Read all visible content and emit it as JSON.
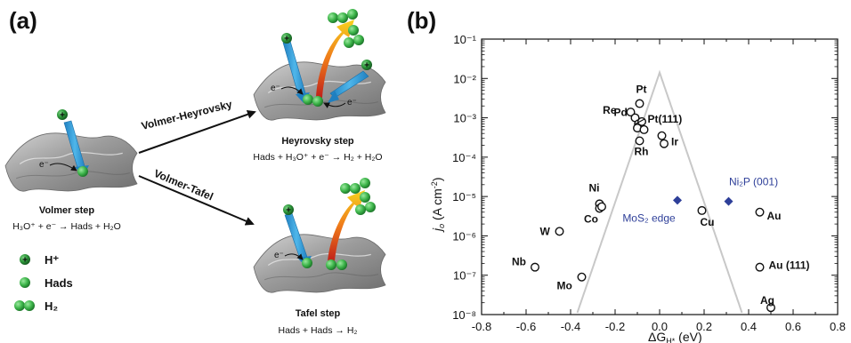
{
  "panel_a": {
    "label": "(a)",
    "volmer": {
      "title": "Volmer step",
      "equation": "H₃O⁺ + e⁻ → Hads + H₂O"
    },
    "heyrovsky": {
      "title": "Heyrovsky step",
      "equation": "Hads + H₃O⁺ + e⁻ → H₂ + H₂O"
    },
    "tafel": {
      "title": "Tafel step",
      "equation": "Hads + Hads → H₂"
    },
    "path_upper": "Volmer-Heyrovsky",
    "path_lower": "Volmer-Tafel",
    "electron": "e⁻",
    "proton_sign": "+",
    "legend": [
      {
        "icon": "proton-icon",
        "label": "H⁺"
      },
      {
        "icon": "hads-icon",
        "label": "Hads"
      },
      {
        "icon": "h2-icon",
        "label": "H₂"
      }
    ],
    "colors": {
      "green": "#3db54a",
      "arrow_blue": "#2a9bd6",
      "surface": "#9a9a9a"
    }
  },
  "panel_b": {
    "label": "(b)",
    "chart_data": {
      "type": "scatter",
      "xlabel": "ΔGH*(eV)",
      "ylabel": "j0 (A cm⁻²)",
      "xlim": [
        -0.8,
        0.8
      ],
      "ylim_log10": [
        -8,
        -1
      ],
      "y_scale": "log",
      "x_ticks": [
        "-0.8",
        "-0.6",
        "-0.4",
        "-0.2",
        "0.0",
        "0.2",
        "0.4",
        "0.6",
        "0.8"
      ],
      "y_ticks": [
        "10⁻⁸",
        "10⁻⁷",
        "10⁻⁶",
        "10⁻⁵",
        "10⁻⁴",
        "10⁻³",
        "10⁻²",
        "10⁻¹"
      ],
      "metals": [
        {
          "name": "Re",
          "x": -0.13,
          "y": 0.0014
        },
        {
          "name": "Pt",
          "x": -0.09,
          "y": 0.0023
        },
        {
          "name": "Pd",
          "x": -0.11,
          "y": 0.001
        },
        {
          "name": "",
          "x": -0.095,
          "y": 0.0007
        },
        {
          "name": "",
          "x": -0.08,
          "y": 0.0008
        },
        {
          "name": "",
          "x": -0.1,
          "y": 0.00055
        },
        {
          "name": "Pt(111)",
          "x": -0.07,
          "y": 0.0005
        },
        {
          "name": "Rh",
          "x": -0.09,
          "y": 0.00026
        },
        {
          "name": "",
          "x": 0.01,
          "y": 0.00035
        },
        {
          "name": "Ir",
          "x": 0.02,
          "y": 0.00022
        },
        {
          "name": "Ni",
          "x": -0.27,
          "y": 6.5e-06
        },
        {
          "name": "",
          "x": -0.27,
          "y": 5e-06
        },
        {
          "name": "Co",
          "x": -0.26,
          "y": 5.5e-06
        },
        {
          "name": "W",
          "x": -0.45,
          "y": 1.3e-06
        },
        {
          "name": "Cu",
          "x": 0.19,
          "y": 4.4e-06
        },
        {
          "name": "Au",
          "x": 0.45,
          "y": 4e-06
        },
        {
          "name": "Nb",
          "x": -0.56,
          "y": 1.6e-07
        },
        {
          "name": "Mo",
          "x": -0.35,
          "y": 9e-08
        },
        {
          "name": "Au (111)",
          "x": 0.45,
          "y": 1.6e-07
        },
        {
          "name": "Ag",
          "x": 0.5,
          "y": 1.5e-08
        }
      ],
      "highlighted": [
        {
          "name": "MoS₂ edge",
          "x": 0.08,
          "y": 8e-06
        },
        {
          "name": "Ni₂P (001)",
          "x": 0.31,
          "y": 7.5e-06
        }
      ],
      "volcano": {
        "peak_x": 0.0,
        "peak_log10_y": -1.85,
        "slope_per_eV": 16.5
      },
      "colors": {
        "volcano": "#c8c8c8",
        "highlight": "#2e3f99",
        "marker": "#111111"
      }
    }
  }
}
